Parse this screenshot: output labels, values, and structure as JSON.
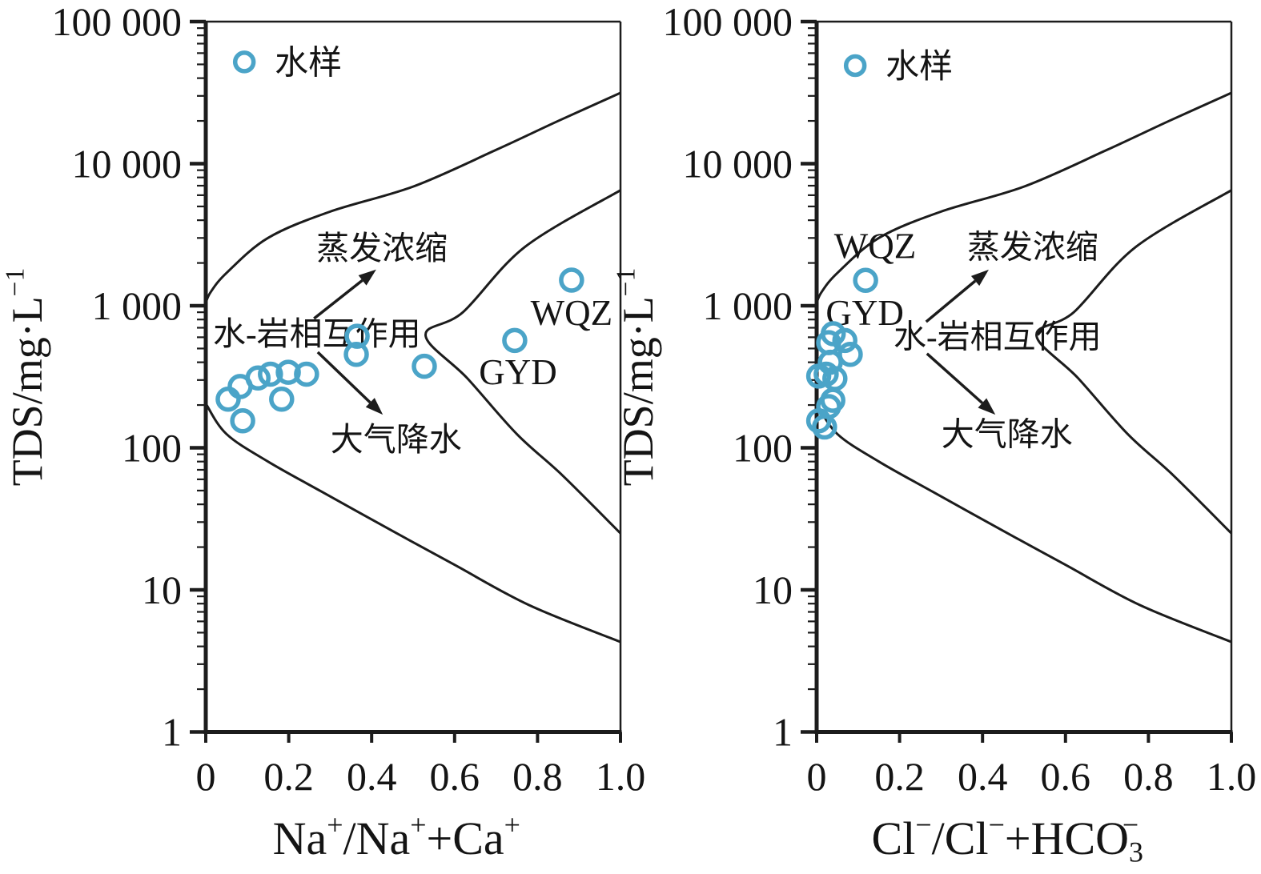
{
  "figure": {
    "background": "#ffffff",
    "marker_color": "#4ba4c8",
    "line_color": "#1c1c1c",
    "text_color": "#141414"
  },
  "chart_data": [
    {
      "type": "scatter",
      "panel": "left",
      "yscale": "log",
      "xlim": [
        0,
        1
      ],
      "ylim": [
        1,
        100000
      ],
      "grid": false,
      "xlabel_segments": [
        {
          "t": "Na"
        },
        {
          "t": "+",
          "sup": true
        },
        {
          "t": "/Na"
        },
        {
          "t": "+",
          "sup": true
        },
        {
          "t": "+Ca"
        },
        {
          "t": "+",
          "sup": true
        }
      ],
      "ylabel_segments": [
        {
          "t": "TDS/mg·L"
        },
        {
          "t": "−1",
          "sup": true
        }
      ],
      "x_ticks": {
        "values": [
          0,
          0.2,
          0.4,
          0.6,
          0.8,
          1
        ],
        "labels": [
          "0",
          "0.2",
          "0.4",
          "0.6",
          "0.8",
          "1.0"
        ]
      },
      "y_ticks": {
        "values": [
          1,
          10,
          100,
          1000,
          10000,
          100000
        ],
        "labels": [
          "1",
          "10",
          "100",
          "1 000",
          "10 000",
          "100 000"
        ]
      },
      "legend": {
        "label": "水样",
        "marker": "circle",
        "x": 0.093,
        "y": 52000
      },
      "points": [
        {
          "x": 0.054,
          "y": 220
        },
        {
          "x": 0.083,
          "y": 270
        },
        {
          "x": 0.126,
          "y": 310
        },
        {
          "x": 0.156,
          "y": 330
        },
        {
          "x": 0.199,
          "y": 340
        },
        {
          "x": 0.243,
          "y": 330
        },
        {
          "x": 0.183,
          "y": 220
        },
        {
          "x": 0.089,
          "y": 155
        },
        {
          "x": 0.365,
          "y": 610
        },
        {
          "x": 0.363,
          "y": 455
        },
        {
          "x": 0.527,
          "y": 375
        },
        {
          "x": 0.745,
          "y": 570
        },
        {
          "x": 0.882,
          "y": 1515
        }
      ],
      "boundary_curves": [
        {
          "name": "upper",
          "points": [
            [
              0,
              1050
            ],
            [
              0.012,
              1250
            ],
            [
              0.05,
              1700
            ],
            [
              0.15,
              3000
            ],
            [
              0.3,
              4600
            ],
            [
              0.5,
              6900
            ],
            [
              0.7,
              12500
            ],
            [
              0.85,
              20000
            ],
            [
              1,
              31500
            ]
          ]
        },
        {
          "name": "middle",
          "points": [
            [
              1,
              6500
            ],
            [
              0.77,
              2600
            ],
            [
              0.62,
              900
            ],
            [
              0.53,
              620
            ],
            [
              0.63,
              310
            ],
            [
              0.75,
              125
            ],
            [
              0.86,
              64
            ],
            [
              1,
              25
            ]
          ]
        },
        {
          "name": "lower",
          "points": [
            [
              0,
              205
            ],
            [
              0.05,
              125
            ],
            [
              0.15,
              80
            ],
            [
              0.28,
              49
            ],
            [
              0.45,
              26
            ],
            [
              0.6,
              15
            ],
            [
              0.78,
              7.8
            ],
            [
              1,
              4.3
            ]
          ]
        }
      ],
      "annotations": [
        {
          "name": "evaporation-label",
          "text": "蒸发浓缩",
          "x": 0.425,
          "y": 2550,
          "kind": "cjk"
        },
        {
          "name": "water-rock-label",
          "text": "水-岩相互作用",
          "x": 0.268,
          "y": 640,
          "kind": "cjk"
        },
        {
          "name": "precipitation-label",
          "text": "大气降水",
          "x": 0.459,
          "y": 115,
          "kind": "cjk"
        },
        {
          "name": "wqz-label",
          "text": "WQZ",
          "x": 0.882,
          "y": 900,
          "kind": "latin"
        },
        {
          "name": "gyd-label",
          "text": "GYD",
          "x": 0.753,
          "y": 345,
          "kind": "latin"
        }
      ],
      "arrows": [
        {
          "name": "evaporation-arrow",
          "x1": 0.261,
          "y1": 813,
          "x2": 0.411,
          "y2": 1800
        },
        {
          "name": "precipitation-arrow",
          "x1": 0.27,
          "y1": 471,
          "x2": 0.427,
          "y2": 171
        }
      ]
    },
    {
      "type": "scatter",
      "panel": "right",
      "yscale": "log",
      "xlim": [
        0,
        1
      ],
      "ylim": [
        1,
        100000
      ],
      "grid": false,
      "xlabel_segments": [
        {
          "t": "Cl"
        },
        {
          "t": "−",
          "sup": true
        },
        {
          "t": "/Cl"
        },
        {
          "t": "−",
          "sup": true
        },
        {
          "t": "+HCO"
        },
        {
          "t": "3",
          "sub": true
        },
        {
          "t": "−",
          "sup": true,
          "dx": -0.45
        }
      ],
      "ylabel_segments": [
        {
          "t": "TDS/mg·L"
        },
        {
          "t": "−1",
          "sup": true
        }
      ],
      "x_ticks": {
        "values": [
          0,
          0.2,
          0.4,
          0.6,
          0.8,
          1
        ],
        "labels": [
          "0",
          "0.2",
          "0.4",
          "0.6",
          "0.8",
          "1.0"
        ]
      },
      "y_ticks": {
        "values": [
          1,
          10,
          100,
          1000,
          10000,
          100000
        ],
        "labels": [
          "1",
          "10",
          "100",
          "1 000",
          "10 000",
          "100 000"
        ]
      },
      "legend": {
        "label": "水样",
        "marker": "circle",
        "x": 0.093,
        "y": 49000
      },
      "points": [
        {
          "x": 0.04,
          "y": 635
        },
        {
          "x": 0.068,
          "y": 570
        },
        {
          "x": 0.029,
          "y": 550
        },
        {
          "x": 0.081,
          "y": 455
        },
        {
          "x": 0.033,
          "y": 400
        },
        {
          "x": 0.023,
          "y": 330
        },
        {
          "x": 0.044,
          "y": 307
        },
        {
          "x": 0.005,
          "y": 320
        },
        {
          "x": 0.039,
          "y": 216
        },
        {
          "x": 0.029,
          "y": 195
        },
        {
          "x": 0.005,
          "y": 155
        },
        {
          "x": 0.019,
          "y": 140
        },
        {
          "x": 0.118,
          "y": 1510
        }
      ],
      "boundary_curves": [
        {
          "name": "upper",
          "points": [
            [
              0,
              1050
            ],
            [
              0.012,
              1250
            ],
            [
              0.05,
              1700
            ],
            [
              0.15,
              3000
            ],
            [
              0.3,
              4600
            ],
            [
              0.5,
              6900
            ],
            [
              0.7,
              12500
            ],
            [
              0.85,
              20000
            ],
            [
              1,
              31500
            ]
          ]
        },
        {
          "name": "middle",
          "points": [
            [
              1,
              6500
            ],
            [
              0.77,
              2600
            ],
            [
              0.62,
              900
            ],
            [
              0.53,
              620
            ],
            [
              0.63,
              310
            ],
            [
              0.75,
              125
            ],
            [
              0.86,
              64
            ],
            [
              1,
              25
            ]
          ]
        },
        {
          "name": "lower",
          "points": [
            [
              0,
              205
            ],
            [
              0.05,
              125
            ],
            [
              0.15,
              80
            ],
            [
              0.28,
              49
            ],
            [
              0.45,
              26
            ],
            [
              0.6,
              15
            ],
            [
              0.78,
              7.8
            ],
            [
              1,
              4.3
            ]
          ]
        }
      ],
      "annotations": [
        {
          "name": "wqz-label",
          "text": "WQZ",
          "x": 0.141,
          "y": 2650,
          "kind": "latin"
        },
        {
          "name": "gyd-label",
          "text": "GYD",
          "x": 0.116,
          "y": 900,
          "kind": "latin"
        },
        {
          "name": "evaporation-label",
          "text": "蒸发浓缩",
          "x": 0.521,
          "y": 2600,
          "kind": "cjk"
        },
        {
          "name": "water-rock-label",
          "text": "水-岩相互作用",
          "x": 0.436,
          "y": 610,
          "kind": "cjk"
        },
        {
          "name": "precipitation-label",
          "text": "大气降水",
          "x": 0.459,
          "y": 125,
          "kind": "cjk"
        }
      ],
      "arrows": [
        {
          "name": "evaporation-arrow",
          "x1": 0.264,
          "y1": 771,
          "x2": 0.415,
          "y2": 1795
        },
        {
          "name": "precipitation-arrow",
          "x1": 0.266,
          "y1": 460,
          "x2": 0.431,
          "y2": 171
        }
      ]
    }
  ]
}
